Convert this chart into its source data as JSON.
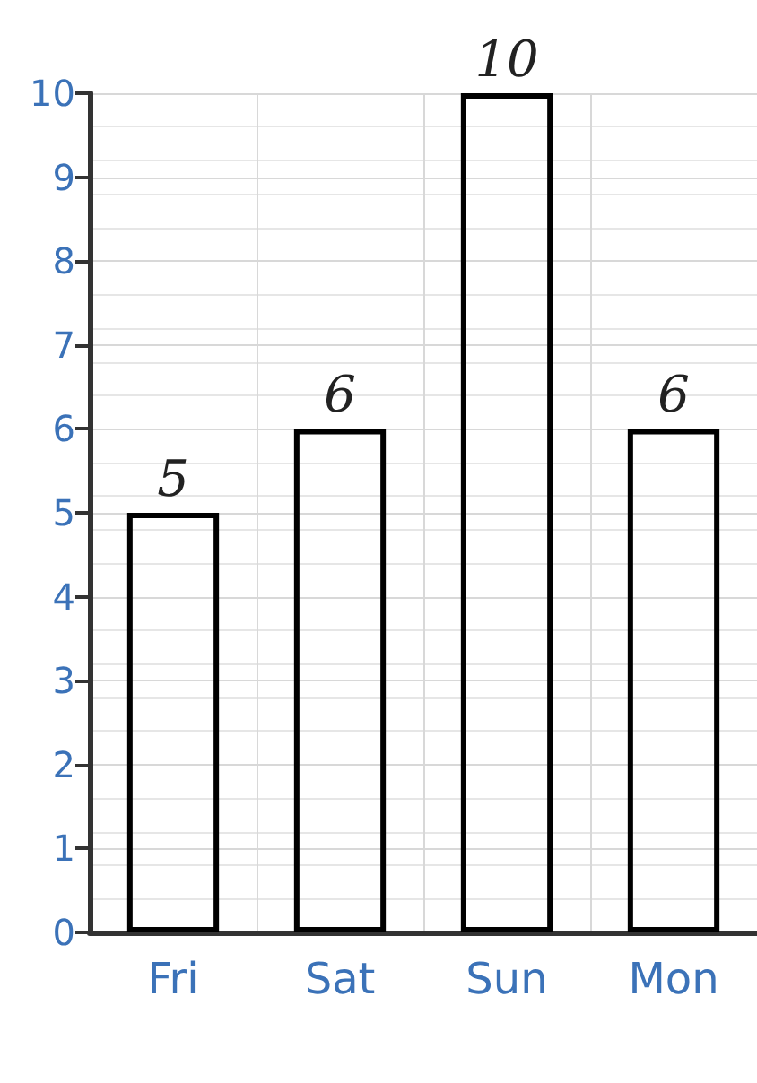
{
  "chart_data": {
    "type": "bar",
    "categories": [
      "Fri",
      "Sat",
      "Sun",
      "Mon"
    ],
    "values": [
      5,
      6,
      10,
      6
    ],
    "color": "#000000",
    "ylim": [
      0,
      10
    ],
    "yticks": [
      0,
      1,
      2,
      3,
      4,
      5,
      6,
      7,
      8,
      9,
      10
    ],
    "grid": true,
    "data_labels": true
  }
}
